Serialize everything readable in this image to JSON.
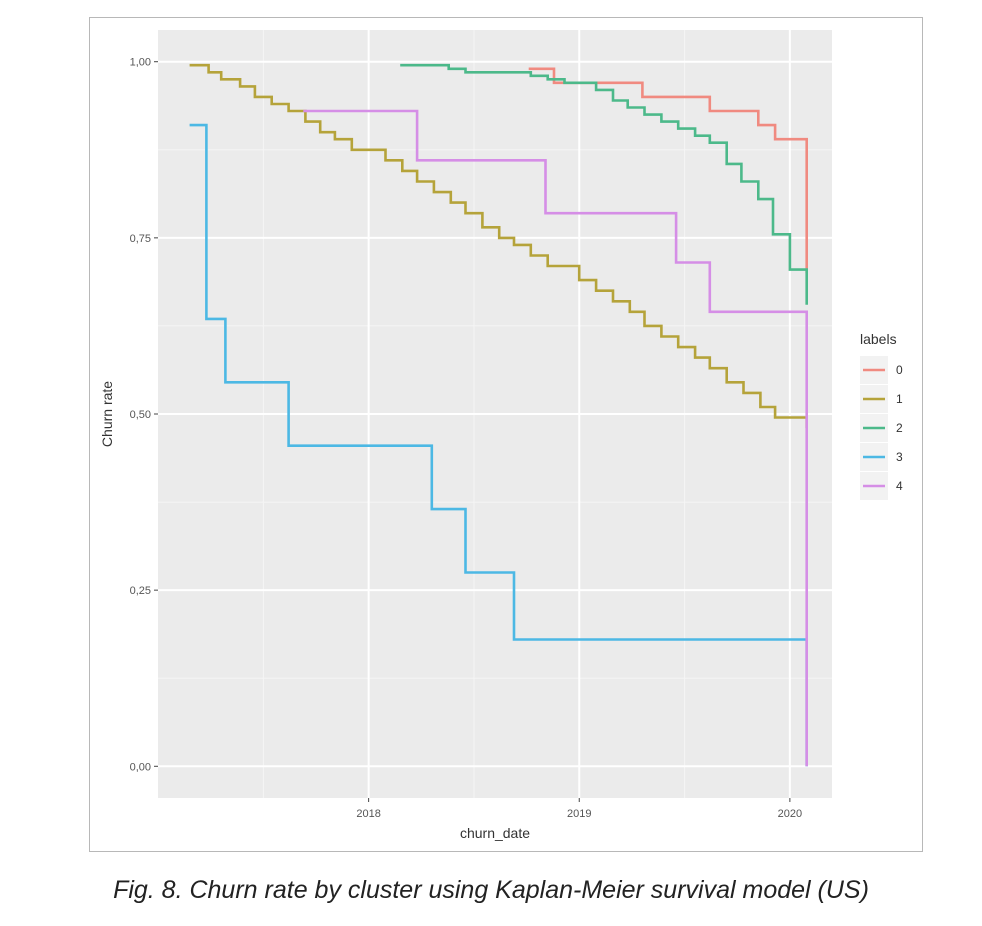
{
  "caption": "Fig. 8. Churn rate by cluster using Kaplan-Meier survival model (US)",
  "chart_data": {
    "type": "line",
    "step": true,
    "title": "",
    "xlabel": "churn_date",
    "ylabel": "Churn rate",
    "x_unit": "year",
    "xlim": [
      2017.0,
      2020.2
    ],
    "ylim": [
      -0.045,
      1.045
    ],
    "x_ticks": [
      2018,
      2019,
      2020
    ],
    "x_tick_labels": [
      "2018",
      "2019",
      "2020"
    ],
    "y_ticks": [
      0,
      0.25,
      0.5,
      0.75,
      1.0
    ],
    "y_tick_labels": [
      "0,00",
      "0,25",
      "0,50",
      "0,75",
      "1,00"
    ],
    "grid": true,
    "panel_background": "#ebebeb",
    "legend": {
      "title": "labels",
      "position": "right",
      "entries": [
        "0",
        "1",
        "2",
        "3",
        "4"
      ]
    },
    "series": [
      {
        "name": "0",
        "color": "#f08a80",
        "x": [
          2018.76,
          2018.84,
          2018.88,
          2019.02,
          2019.3,
          2019.62,
          2019.85,
          2019.93,
          2020.08,
          2020.08
        ],
        "y": [
          0.99,
          0.99,
          0.97,
          0.97,
          0.95,
          0.93,
          0.91,
          0.89,
          0.89,
          0.7
        ]
      },
      {
        "name": "1",
        "color": "#b5a33a",
        "x": [
          2017.15,
          2017.24,
          2017.3,
          2017.39,
          2017.46,
          2017.54,
          2017.62,
          2017.7,
          2017.77,
          2017.84,
          2017.92,
          2018.08,
          2018.16,
          2018.23,
          2018.31,
          2018.39,
          2018.46,
          2018.54,
          2018.62,
          2018.69,
          2018.77,
          2018.85,
          2019.0,
          2019.08,
          2019.16,
          2019.24,
          2019.31,
          2019.39,
          2019.47,
          2019.55,
          2019.62,
          2019.7,
          2019.78,
          2019.86,
          2019.93,
          2020.08
        ],
        "y": [
          0.995,
          0.985,
          0.975,
          0.965,
          0.95,
          0.94,
          0.93,
          0.915,
          0.9,
          0.89,
          0.875,
          0.86,
          0.845,
          0.83,
          0.815,
          0.8,
          0.785,
          0.765,
          0.75,
          0.74,
          0.725,
          0.71,
          0.69,
          0.675,
          0.66,
          0.645,
          0.625,
          0.61,
          0.595,
          0.58,
          0.565,
          0.545,
          0.53,
          0.51,
          0.495,
          0.48
        ]
      },
      {
        "name": "2",
        "color": "#4cb98a",
        "x": [
          2018.15,
          2018.38,
          2018.46,
          2018.54,
          2018.69,
          2018.77,
          2018.85,
          2018.93,
          2019.08,
          2019.16,
          2019.23,
          2019.31,
          2019.39,
          2019.47,
          2019.55,
          2019.62,
          2019.7,
          2019.77,
          2019.85,
          2019.92,
          2020.0,
          2020.08,
          2020.08
        ],
        "y": [
          0.995,
          0.99,
          0.985,
          0.985,
          0.985,
          0.98,
          0.975,
          0.97,
          0.96,
          0.945,
          0.935,
          0.925,
          0.915,
          0.905,
          0.895,
          0.885,
          0.855,
          0.83,
          0.805,
          0.755,
          0.705,
          0.705,
          0.655
        ]
      },
      {
        "name": "3",
        "color": "#4cb8e4",
        "x": [
          2017.15,
          2017.23,
          2017.32,
          2017.62,
          2017.84,
          2018.3,
          2018.46,
          2018.69,
          2020.08,
          2020.08
        ],
        "y": [
          0.91,
          0.635,
          0.545,
          0.455,
          0.455,
          0.365,
          0.275,
          0.18,
          0.18,
          0.0
        ]
      },
      {
        "name": "4",
        "color": "#d58ee6",
        "x": [
          2017.69,
          2018.23,
          2018.84,
          2019.46,
          2019.62,
          2020.08,
          2020.08
        ],
        "y": [
          0.93,
          0.86,
          0.785,
          0.715,
          0.645,
          0.645,
          0.0
        ]
      }
    ]
  }
}
